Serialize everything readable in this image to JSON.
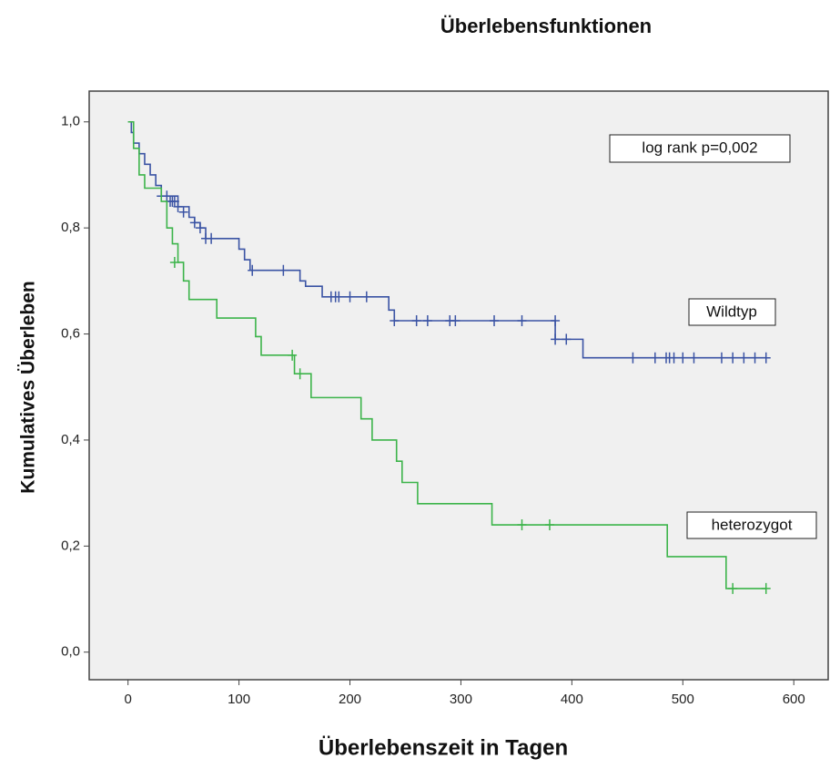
{
  "chart_data": {
    "type": "survival-step",
    "title": "Überlebensfunktionen",
    "x_label": "Überlebenszeit in Tagen",
    "y_label": "Kumulatives Überleben",
    "annotations": [
      "log rank p=0,002"
    ],
    "xlim": [
      -35,
      631
    ],
    "ylim": [
      -0.052,
      1.058
    ],
    "xticks": [
      0,
      100,
      200,
      300,
      400,
      500,
      600
    ],
    "yticks": [
      {
        "value": 0,
        "label": "0,0"
      },
      {
        "value": 0.2,
        "label": "0,2"
      },
      {
        "value": 0.4,
        "label": "0,4"
      },
      {
        "value": 0.6,
        "label": "0,6"
      },
      {
        "value": 0.8,
        "label": "0,8"
      },
      {
        "value": 1.0,
        "label": "1,0"
      }
    ],
    "series": [
      {
        "name": "Wildtyp",
        "color": "#3a53a4",
        "x": [
          0,
          3,
          5,
          10,
          15,
          20,
          25,
          30,
          45,
          55,
          60,
          65,
          70,
          100,
          105,
          110,
          155,
          160,
          175,
          235,
          240,
          385,
          410
        ],
        "values": [
          1.0,
          0.98,
          0.96,
          0.94,
          0.92,
          0.9,
          0.88,
          0.86,
          0.84,
          0.82,
          0.81,
          0.8,
          0.78,
          0.76,
          0.74,
          0.72,
          0.7,
          0.69,
          0.67,
          0.645,
          0.625,
          0.59,
          0.555
        ],
        "censor_x": [
          30,
          35,
          38,
          40,
          42,
          45,
          50,
          60,
          65,
          70,
          75,
          112,
          140,
          183,
          187,
          190,
          200,
          215,
          240,
          260,
          270,
          290,
          295,
          330,
          355,
          385,
          385,
          395,
          455,
          475,
          485,
          488,
          492,
          500,
          510,
          535,
          545,
          555,
          565,
          575
        ],
        "censor_values": [
          0.86,
          0.86,
          0.85,
          0.85,
          0.85,
          0.84,
          0.83,
          0.81,
          0.8,
          0.78,
          0.78,
          0.72,
          0.72,
          0.67,
          0.67,
          0.67,
          0.67,
          0.67,
          0.625,
          0.625,
          0.625,
          0.625,
          0.625,
          0.625,
          0.625,
          0.625,
          0.59,
          0.59,
          0.555,
          0.555,
          0.555,
          0.555,
          0.555,
          0.555,
          0.555,
          0.555,
          0.555,
          0.555,
          0.555,
          0.555
        ]
      },
      {
        "name": "heterozygot",
        "color": "#3cb44a",
        "x": [
          0,
          5,
          10,
          15,
          30,
          35,
          40,
          45,
          50,
          55,
          80,
          115,
          120,
          150,
          165,
          210,
          220,
          242,
          247,
          261,
          328,
          486,
          539
        ],
        "values": [
          1.0,
          0.95,
          0.9,
          0.875,
          0.85,
          0.8,
          0.77,
          0.735,
          0.7,
          0.665,
          0.63,
          0.595,
          0.56,
          0.525,
          0.48,
          0.44,
          0.4,
          0.36,
          0.32,
          0.28,
          0.24,
          0.18,
          0.12
        ],
        "censor_x": [
          42,
          148,
          155,
          355,
          380,
          545,
          575
        ],
        "censor_values": [
          0.735,
          0.56,
          0.525,
          0.24,
          0.24,
          0.12,
          0.12
        ]
      }
    ]
  }
}
